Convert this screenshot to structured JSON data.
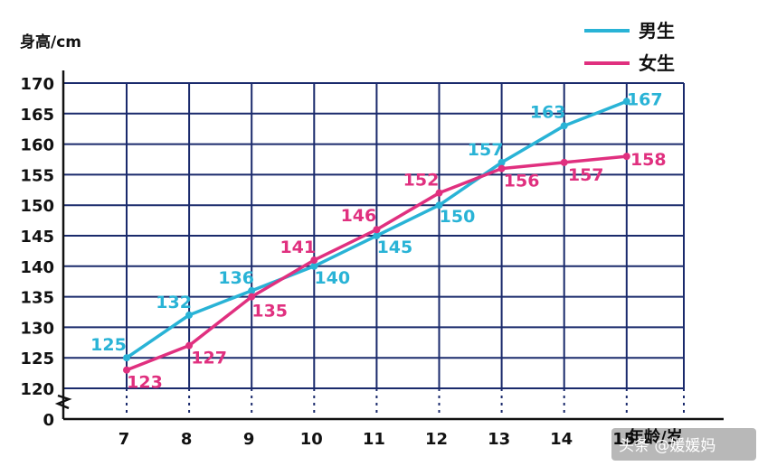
{
  "chart_data": {
    "type": "line",
    "title": "",
    "ylabel": "身高/cm",
    "xlabel": "年龄/岁",
    "x": [
      7,
      8,
      9,
      10,
      11,
      12,
      13,
      14,
      15
    ],
    "x_tick_labels": [
      "7",
      "8",
      "9",
      "10",
      "11",
      "12",
      "13",
      "14",
      "15"
    ],
    "y_tick_labels": [
      "0",
      "120",
      "125",
      "130",
      "135",
      "140",
      "145",
      "150",
      "155",
      "160",
      "165",
      "170"
    ],
    "ylim": [
      120,
      170
    ],
    "y_axis_break": true,
    "grid": true,
    "legend_position": "top-right",
    "series": [
      {
        "name": "男生",
        "color": "#29b3d6",
        "values": [
          125,
          132,
          136,
          140,
          145,
          150,
          157,
          163,
          167
        ],
        "labels": [
          "125",
          "132",
          "136",
          "140",
          "145",
          "150",
          "157",
          "163",
          "167"
        ]
      },
      {
        "name": "女生",
        "color": "#e0307f",
        "values": [
          123,
          127,
          135,
          141,
          146,
          152,
          156,
          157,
          158
        ],
        "labels": [
          "123",
          "127",
          "135",
          "141",
          "146",
          "152",
          "156",
          "157",
          "158"
        ]
      }
    ]
  },
  "watermark": "头条 @媛媛妈",
  "colors": {
    "grid": "#1a2a6c",
    "axis": "#111111"
  }
}
